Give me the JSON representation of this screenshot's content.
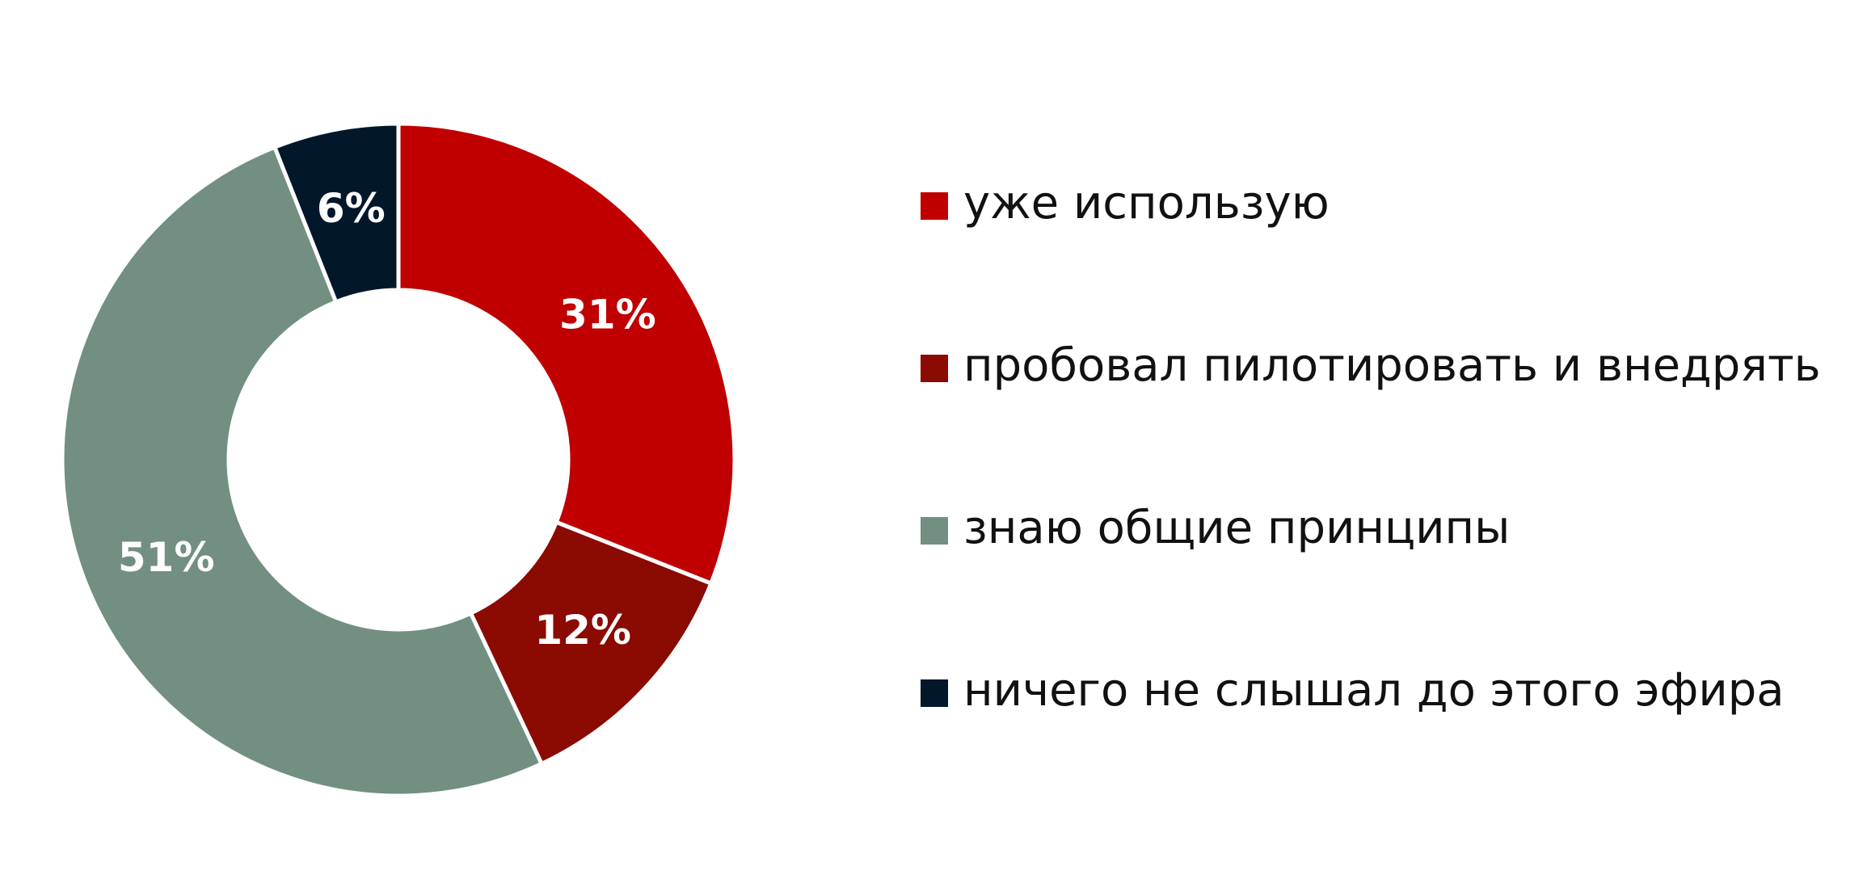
{
  "chart_data": {
    "type": "donut",
    "categories": [
      "уже использую",
      "пробовал пилотировать и внедрять",
      "знаю общие принципы",
      "ничего не слышал до этого эфира"
    ],
    "values": [
      31,
      12,
      51,
      6
    ],
    "value_labels": [
      "31%",
      "12%",
      "51%",
      "6%"
    ],
    "colors": [
      "#c00000",
      "#8b0a02",
      "#728f82",
      "#03172b"
    ],
    "legend": "right"
  }
}
